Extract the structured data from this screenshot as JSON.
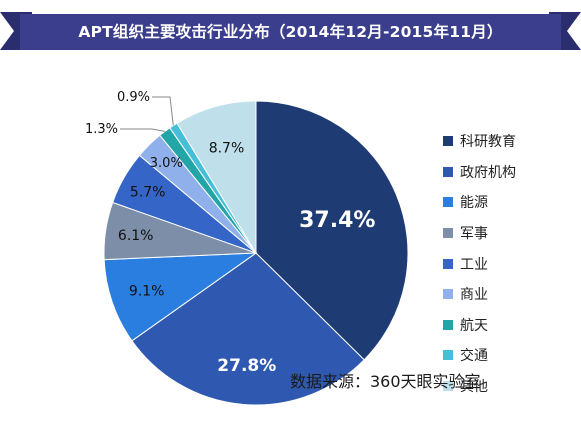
{
  "header": {
    "title": "APT组织主要攻击行业分布（2014年12月-2015年11月）"
  },
  "source_note": "数据来源：360天眼实验室",
  "colors": {
    "ribbon": "#3a3e8c",
    "ribbon_edge": "#2b2e6e"
  },
  "chart_data": {
    "type": "pie",
    "title": "APT组织主要攻击行业分布（2014年12月-2015年11月）",
    "legend_position": "right",
    "slices": [
      {
        "name": "科研教育",
        "value": 37.4,
        "label": "37.4%",
        "color": "#1f3b73"
      },
      {
        "name": "政府机构",
        "value": 27.8,
        "label": "27.8%",
        "color": "#2f58b0"
      },
      {
        "name": "能源",
        "value": 9.1,
        "label": "9.1%",
        "color": "#2a7ee0"
      },
      {
        "name": "军事",
        "value": 6.1,
        "label": "6.1%",
        "color": "#7d8ea8"
      },
      {
        "name": "工业",
        "value": 5.7,
        "label": "5.7%",
        "color": "#3566c7"
      },
      {
        "name": "商业",
        "value": 3.0,
        "label": "3.0%",
        "color": "#8fb0ea"
      },
      {
        "name": "航天",
        "value": 1.3,
        "label": "1.3%",
        "color": "#23a5a8"
      },
      {
        "name": "交通",
        "value": 0.9,
        "label": "0.9%",
        "color": "#45bfd8"
      },
      {
        "name": "其他",
        "value": 8.7,
        "label": "8.7%",
        "color": "#bfe0ea"
      }
    ]
  }
}
